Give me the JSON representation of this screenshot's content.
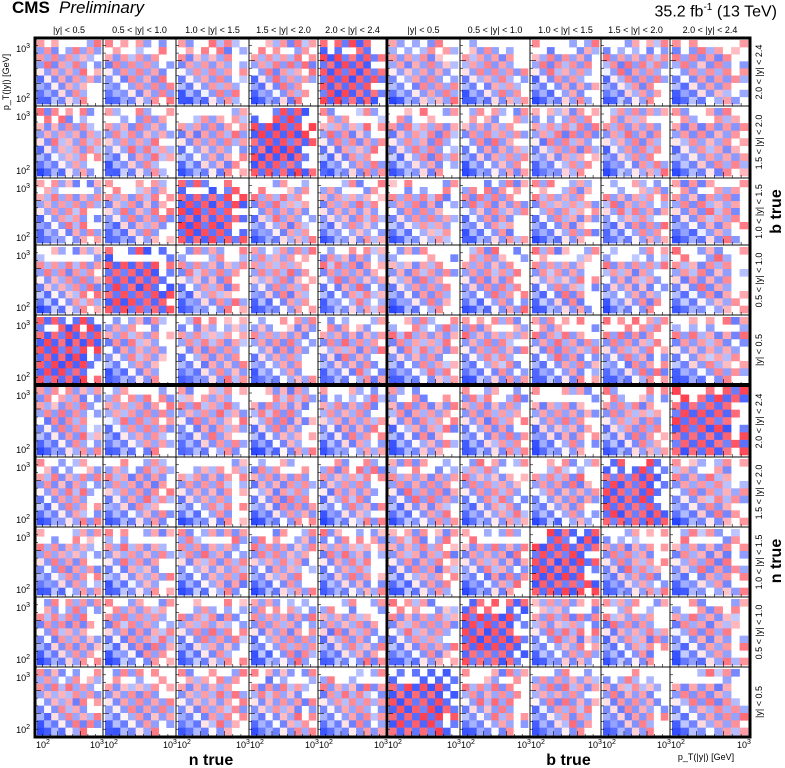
{
  "header": {
    "experiment": "CMS",
    "status": "Preliminary",
    "luminosity": "35.2 fb",
    "lumi_exponent": "-1",
    "energy": "(13 TeV)"
  },
  "chart_data": {
    "type": "heatmap",
    "y_bins": [
      "|y| < 0.5",
      "0.5 < |y| < 1.0",
      "1.0 < |y| < 1.5",
      "1.5 < |y| < 2.0",
      "2.0 < |y| < 2.4"
    ],
    "column_labels": [
      "|y| < 0.5",
      "0.5 < |y| < 1.0",
      "1.0 < |y| < 1.5",
      "1.5 < |y| < 2.0",
      "2.0 < |y| < 2.4",
      "|y| < 0.5",
      "0.5 < |y| < 1.0",
      "1.0 < |y| < 1.5",
      "1.5 < |y| < 2.0",
      "2.0 < |y| < 2.4"
    ],
    "row_labels": [
      "2.0 < |y| < 2.4",
      "1.5 < |y| < 2.0",
      "1.0 < |y| < 1.5",
      "0.5 < |y| < 1.0",
      "|y| < 0.5",
      "2.0 < |y| < 2.4",
      "1.5 < |y| < 2.0",
      "1.0 < |y| < 1.5",
      "0.5 < |y| < 1.0",
      "|y| < 0.5"
    ],
    "blocks": {
      "columns": [
        "n true",
        "b true"
      ],
      "rows": [
        "b true",
        "n true"
      ]
    },
    "x_axis": {
      "label": "p_T(|y|)",
      "unit": "[GeV]",
      "scale": "log",
      "tick_labels": [
        "10^2",
        "10^3"
      ]
    },
    "y_axis": {
      "label": "p_T(|y|)",
      "unit": "[GeV]",
      "scale": "log",
      "tick_labels": [
        "10^2",
        "10^3"
      ]
    },
    "color_scale": {
      "negative": "#1e3cff",
      "zero": "#ffffff",
      "positive": "#ff2233",
      "range": [
        -1,
        1
      ]
    },
    "legend": "none",
    "grid": false
  }
}
